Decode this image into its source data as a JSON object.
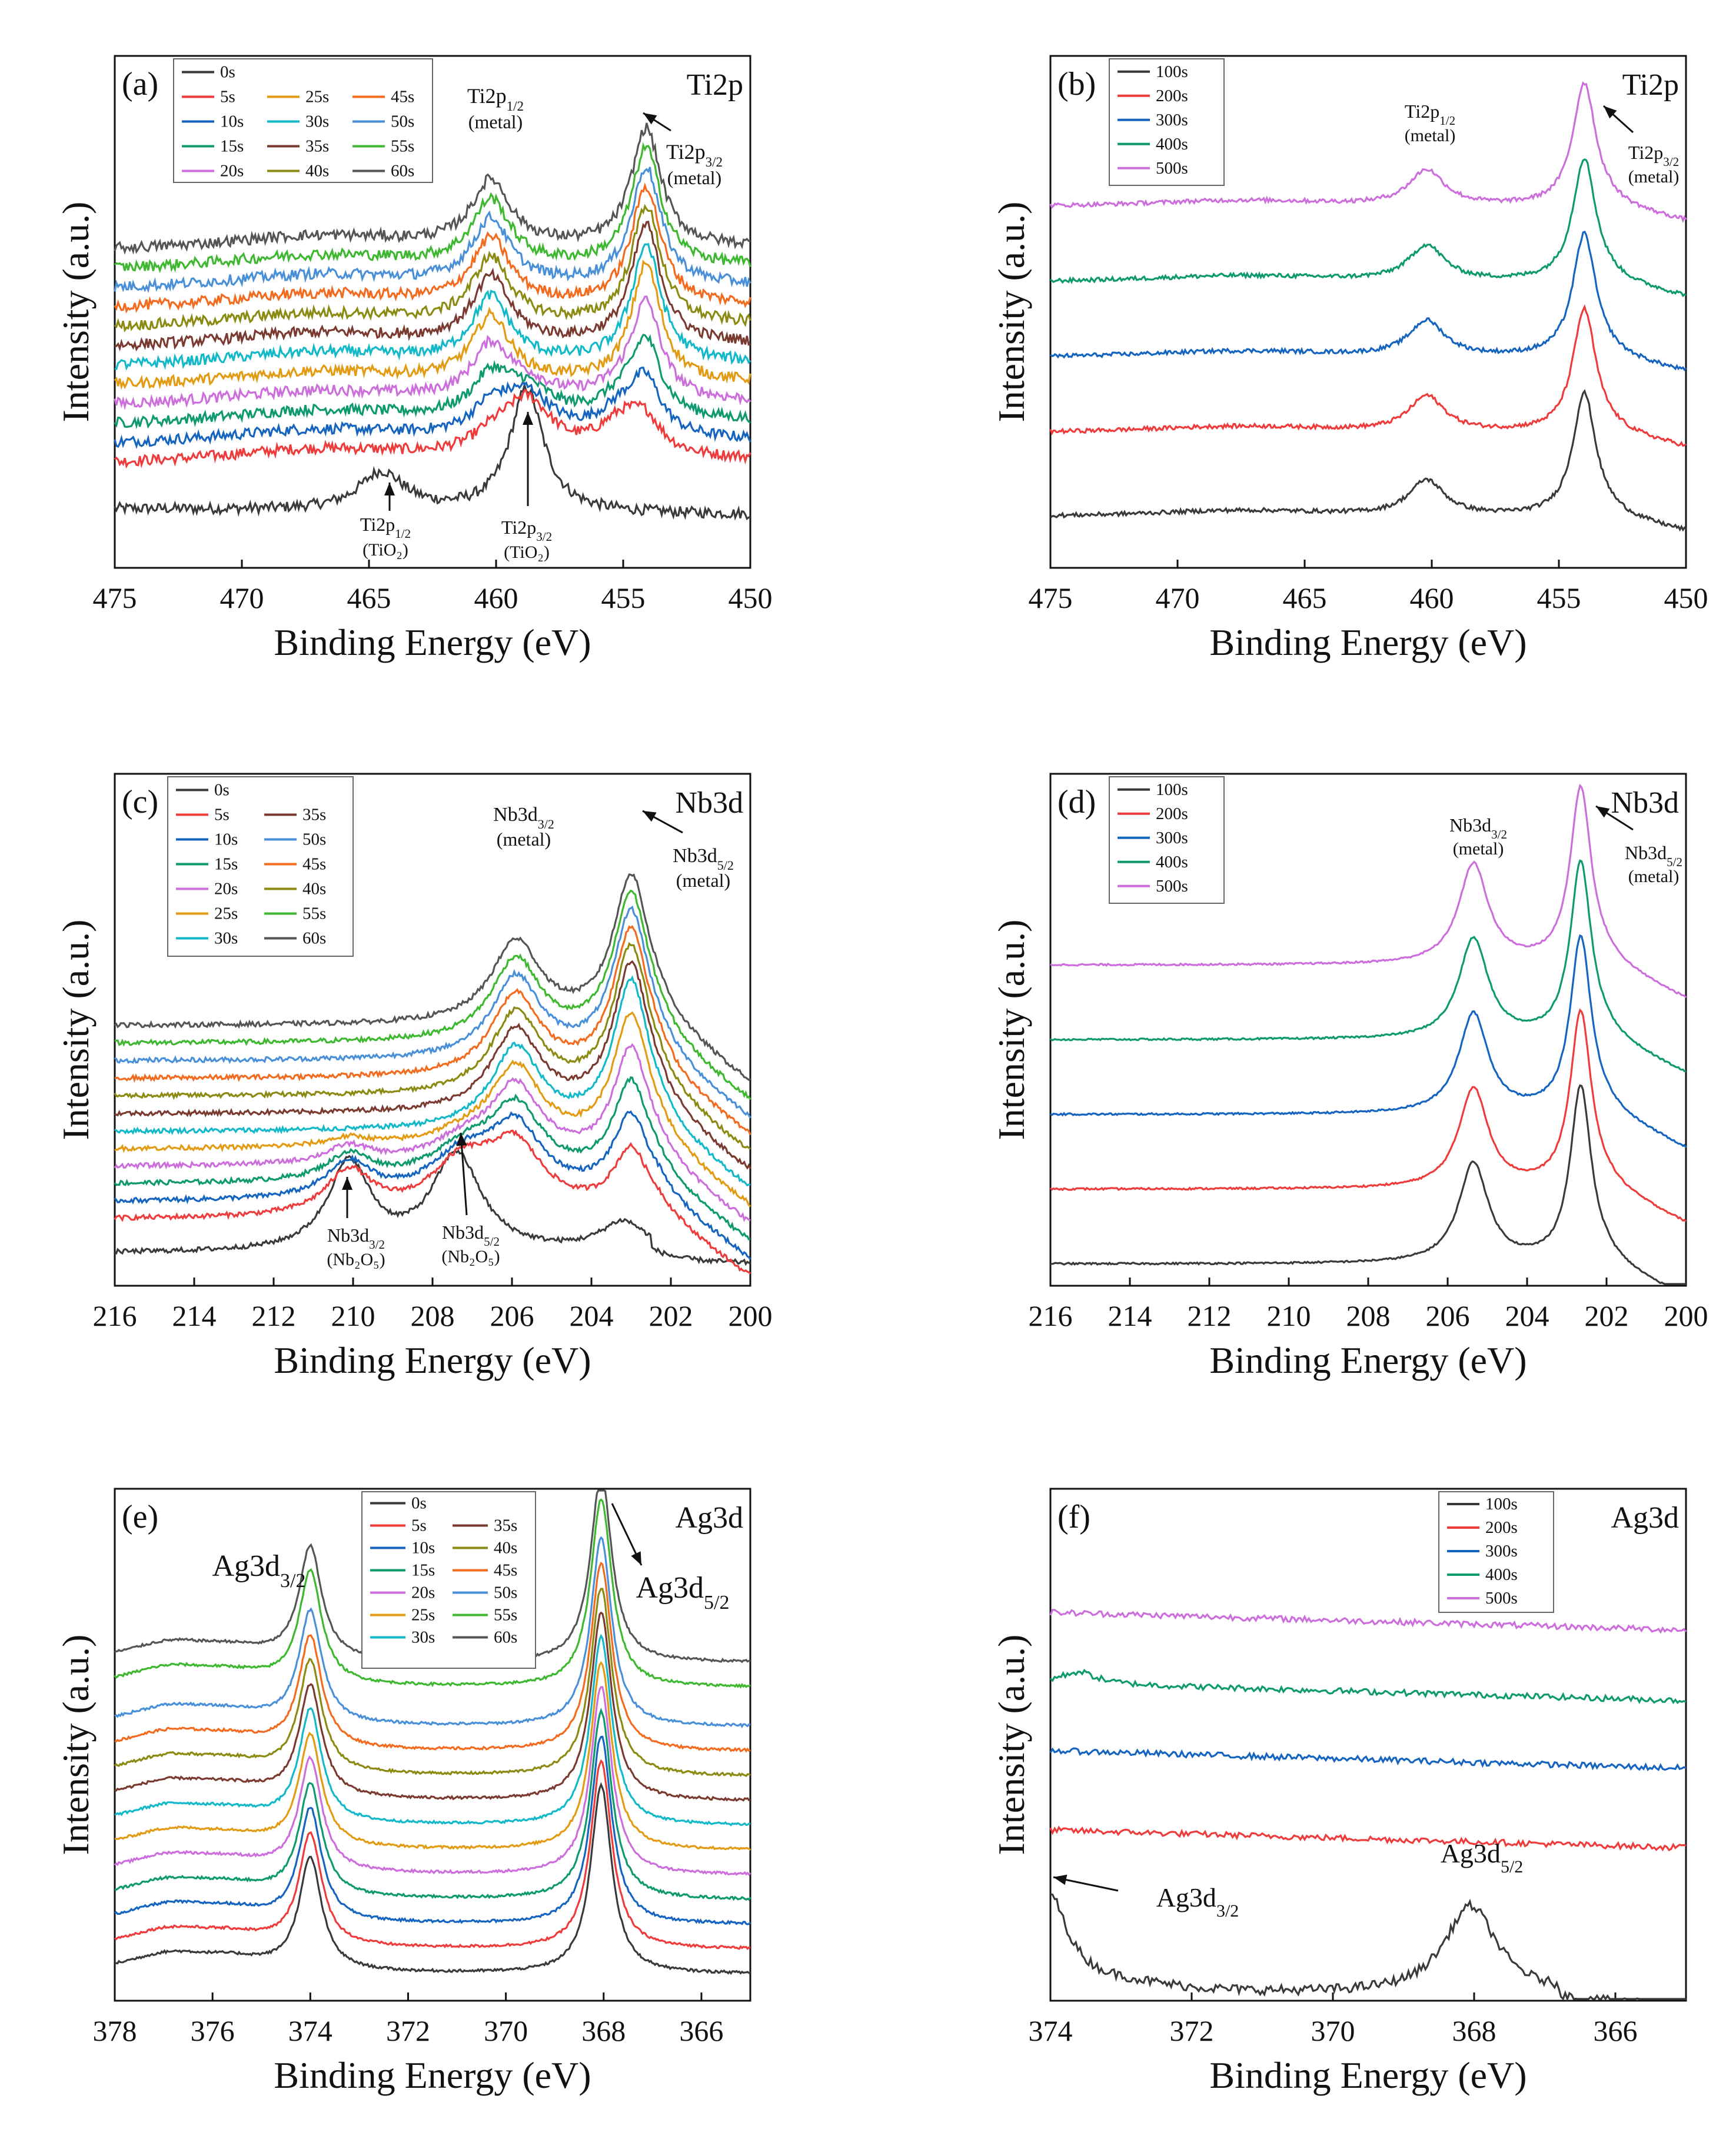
{
  "figure": {
    "colors": {
      "0s": "#3a3a3a",
      "5s": "#ee3b3b",
      "10s": "#1565c0",
      "15s": "#0e9a6e",
      "20s": "#cc6edb",
      "25s": "#e29b13",
      "30s": "#13b9c8",
      "35s": "#7a3a30",
      "40s": "#8b8b13",
      "45s": "#f26b1f",
      "50s": "#4a90d9",
      "55s": "#3db830",
      "60s": "#555555",
      "100s": "#3a3a3a",
      "200s": "#ee3b3b",
      "300s": "#1565c0",
      "400s": "#0e9a6e",
      "500s": "#cc6edb"
    }
  },
  "chart_data": [
    {
      "id": "a",
      "type": "line",
      "panel_label": "(a)",
      "element_label": "Ti2p",
      "xlabel": "Binding Energy (eV)",
      "ylabel": "Intensity (a.u.)",
      "xlim": [
        475,
        450
      ],
      "xticks": [
        "475",
        "470",
        "465",
        "460",
        "455",
        "450"
      ],
      "legend_title_entry": "0s",
      "legend_columns": [
        [
          "5s",
          "10s",
          "15s",
          "20s"
        ],
        [
          "25s",
          "30s",
          "35s",
          "40s"
        ],
        [
          "45s",
          "50s",
          "55s",
          "60s"
        ]
      ],
      "series_offsets": {
        "0s": 0,
        "5s": 1,
        "10s": 2,
        "15s": 3,
        "20s": 4,
        "25s": 5,
        "30s": 6,
        "35s": 7,
        "40s": 8,
        "45s": 9,
        "50s": 10,
        "55s": 11,
        "60s": 12
      },
      "peaks_note": "metal peaks at 460.2 and 454.1 eV; oxide peaks at 464.5 and 458.8 eV",
      "annotations": [
        {
          "text": "Ti2p",
          "sub": "1/2",
          "line2": "(metal)"
        },
        {
          "text": "Ti2p",
          "sub": "3/2",
          "line2": "(metal)"
        },
        {
          "text": "Ti2p",
          "sub": "1/2",
          "line2": "(TiO₂)"
        },
        {
          "text": "Ti2p",
          "sub": "3/2",
          "line2": "(TiO₂)"
        }
      ]
    },
    {
      "id": "b",
      "type": "line",
      "panel_label": "(b)",
      "element_label": "Ti2p",
      "xlabel": "Binding Energy (eV)",
      "ylabel": "Intensity (a.u.)",
      "xlim": [
        475,
        450
      ],
      "xticks": [
        "475",
        "470",
        "465",
        "460",
        "455",
        "450"
      ],
      "legend": [
        "100s",
        "200s",
        "300s",
        "400s",
        "500s"
      ],
      "peaks_note": "metal peaks at 460.2 and 454.0 eV",
      "annotations": [
        {
          "text": "Ti2p",
          "sub": "1/2",
          "line2": "(metal)"
        },
        {
          "text": "Ti2p",
          "sub": "3/2",
          "line2": "(metal)"
        }
      ]
    },
    {
      "id": "c",
      "type": "line",
      "panel_label": "(c)",
      "element_label": "Nb3d",
      "xlabel": "Binding Energy (eV)",
      "ylabel": "Intensity (a.u.)",
      "xlim": [
        216,
        200
      ],
      "xticks": [
        "216",
        "214",
        "212",
        "210",
        "208",
        "206",
        "204",
        "202",
        "200"
      ],
      "legend_title_entry": "0s",
      "legend_columns": [
        [
          "5s",
          "10s",
          "15s",
          "20s",
          "25s",
          "30s"
        ],
        [
          "35s",
          "50s",
          "45s",
          "40s",
          "55s",
          "60s"
        ]
      ],
      "peaks_note": "metal peaks at 205.8 and 203.0 eV; oxide peaks at 210.1 and 207.4 eV",
      "annotations": [
        {
          "text": "Nb3d",
          "sub": "3/2",
          "line2": "(metal)"
        },
        {
          "text": "Nb3d",
          "sub": "5/2",
          "line2": "(metal)"
        },
        {
          "text": "Nb3d",
          "sub": "3/2",
          "line2": "(Nb₂O₅)"
        },
        {
          "text": "Nb3d",
          "sub": "5/2",
          "line2": "(Nb₂O₅)"
        }
      ]
    },
    {
      "id": "d",
      "type": "line",
      "panel_label": "(d)",
      "element_label": "Nb3d",
      "xlabel": "Binding Energy (eV)",
      "ylabel": "Intensity (a.u.)",
      "xlim": [
        216,
        200
      ],
      "xticks": [
        "216",
        "214",
        "212",
        "210",
        "208",
        "206",
        "204",
        "202",
        "200"
      ],
      "legend": [
        "100s",
        "200s",
        "300s",
        "400s",
        "500s"
      ],
      "peaks_note": "metal peaks at 205.3 and 202.6 eV",
      "annotations": [
        {
          "text": "Nb3d",
          "sub": "3/2",
          "line2": "(metal)"
        },
        {
          "text": "Nb3d",
          "sub": "5/2",
          "line2": "(metal)"
        }
      ]
    },
    {
      "id": "e",
      "type": "line",
      "panel_label": "(e)",
      "element_label": "Ag3d",
      "xlabel": "Binding Energy (eV)",
      "ylabel": "Intensity (a.u.)",
      "xlim": [
        378,
        365
      ],
      "xticks": [
        "378",
        "376",
        "374",
        "372",
        "370",
        "368",
        "366"
      ],
      "legend_title_entry": "0s",
      "legend_columns": [
        [
          "5s",
          "10s",
          "15s",
          "20s",
          "25s",
          "30s"
        ],
        [
          "35s",
          "40s",
          "45s",
          "50s",
          "55s",
          "60s"
        ]
      ],
      "peaks_note": "peaks at 374.0 and 368.0 eV",
      "annotations": [
        {
          "text": "Ag3d",
          "sub": "3/2"
        },
        {
          "text": "Ag3d",
          "sub": "5/2"
        }
      ]
    },
    {
      "id": "f",
      "type": "line",
      "panel_label": "(f)",
      "element_label": "Ag3d",
      "xlabel": "Binding Energy (eV)",
      "ylabel": "Intensity (a.u.)",
      "xlim": [
        374,
        365
      ],
      "xticks": [
        "374",
        "372",
        "370",
        "368",
        "366"
      ],
      "legend": [
        "100s",
        "200s",
        "300s",
        "400s",
        "500s"
      ],
      "peaks_note": "only 100s shows peaks at 374 (edge) and 368.0 eV",
      "annotations": [
        {
          "text": "Ag3d",
          "sub": "3/2"
        },
        {
          "text": "Ag3d",
          "sub": "5/2"
        }
      ]
    }
  ]
}
